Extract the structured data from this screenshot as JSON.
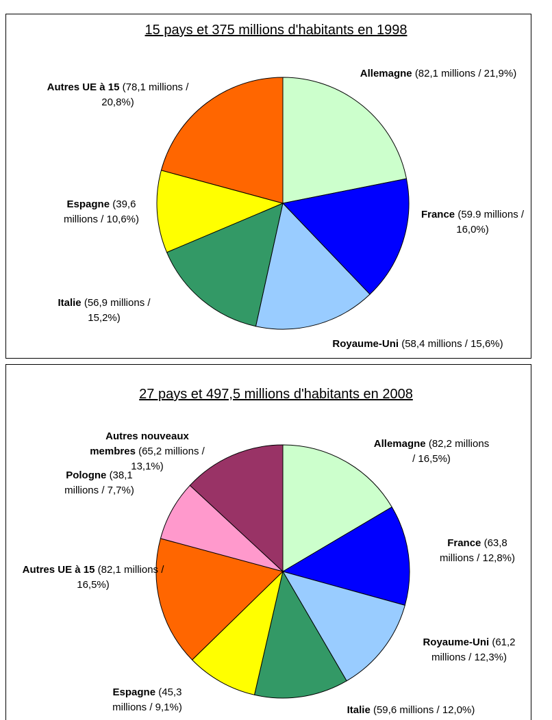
{
  "chart_data": [
    {
      "type": "pie",
      "title": "15 pays et 375 millions d'habitants en 1998",
      "categories": [
        "Allemagne",
        "France",
        "Royaume-Uni",
        "Italie",
        "Espagne",
        "Autres UE à 15"
      ],
      "values": [
        21.9,
        16.0,
        15.6,
        15.2,
        10.6,
        20.8
      ],
      "value_labels": [
        "(82,1 millions / 21,9%)",
        "(59.9 millions / 16,0%)",
        "(58,4 millions / 15,6%)",
        "(56,9 millions / 15,2%)",
        "(39,6 millions / 10,6%)",
        "(78,1 millions / 20,8%)"
      ],
      "colors": [
        "#ccffcc",
        "#0000ff",
        "#99ccff",
        "#339966",
        "#ffff00",
        "#ff6600"
      ]
    },
    {
      "type": "pie",
      "title": "27 pays et 497,5 millions d'habitants en 2008",
      "categories": [
        "Allemagne",
        "France",
        "Royaume-Uni",
        "Italie",
        "Espagne",
        "Autres UE à 15",
        "Pologne",
        "Autres nouveaux membres"
      ],
      "values": [
        16.5,
        12.8,
        12.3,
        12.0,
        9.1,
        16.5,
        7.7,
        13.1
      ],
      "value_labels": [
        "(82,2 millions / 16,5%)",
        "(63,8 millions / 12,8%)",
        "(61,2 millions / 12,3%)",
        "(59,6 millions / 12,0%)",
        "(45,3 millions / 9,1%)",
        "(82,1 millions / 16,5%)",
        "(38,1 millions / 7,7%)",
        "(65,2 millions / 13,1%)"
      ],
      "colors": [
        "#ccffcc",
        "#0000ff",
        "#99ccff",
        "#339966",
        "#ffff00",
        "#ff6600",
        "#ff99cc",
        "#993366"
      ]
    }
  ]
}
